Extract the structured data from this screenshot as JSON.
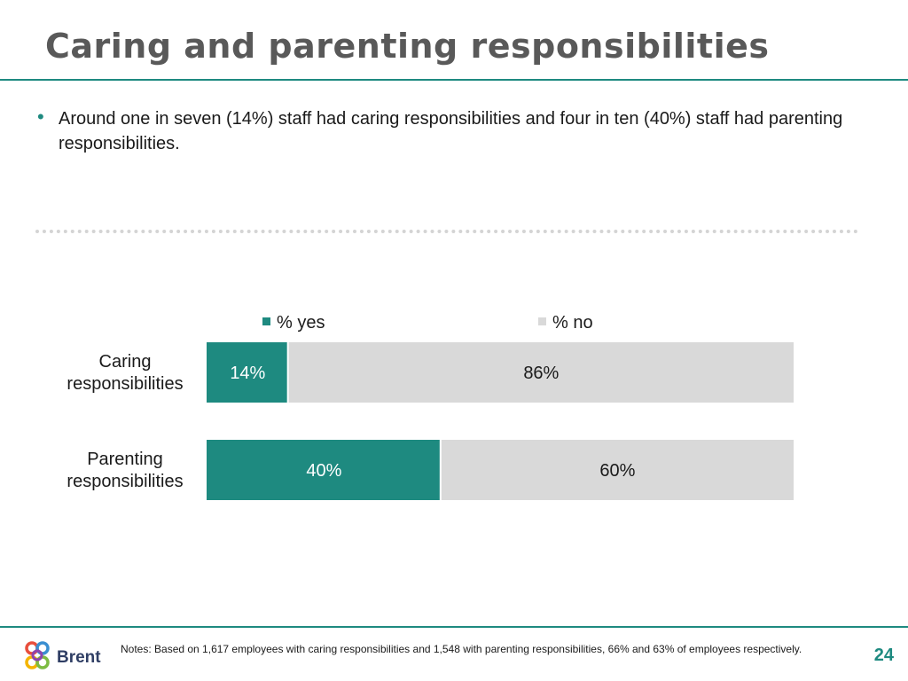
{
  "slide": {
    "title": "Caring and parenting responsibilities",
    "bullet": "Around one in seven (14%) staff had caring responsibilities and four in ten (40%) staff had parenting responsibilities."
  },
  "footer": {
    "logo_text": "Brent",
    "notes": "Notes: Based on 1,617 employees  with caring responsibilities and 1,548 with parenting responsibilities, 66% and 63% of employees respectively.",
    "page_number": "24"
  },
  "colors": {
    "accent": "#1e8a80",
    "no_bar": "#d9d9d9",
    "title": "#595959"
  },
  "chart_data": {
    "type": "bar",
    "orientation": "horizontal",
    "stacked": true,
    "categories": [
      [
        "Caring",
        "responsibilities"
      ],
      [
        "Parenting",
        "responsibilities"
      ]
    ],
    "series": [
      {
        "name": "% yes",
        "values": [
          14,
          40
        ],
        "labels": [
          "14%",
          "40%"
        ],
        "color": "#1e8a80"
      },
      {
        "name": "% no",
        "values": [
          86,
          60
        ],
        "labels": [
          "86%",
          "60%"
        ],
        "color": "#d9d9d9"
      }
    ],
    "xlim": [
      0,
      100
    ],
    "legend_position": "top"
  }
}
